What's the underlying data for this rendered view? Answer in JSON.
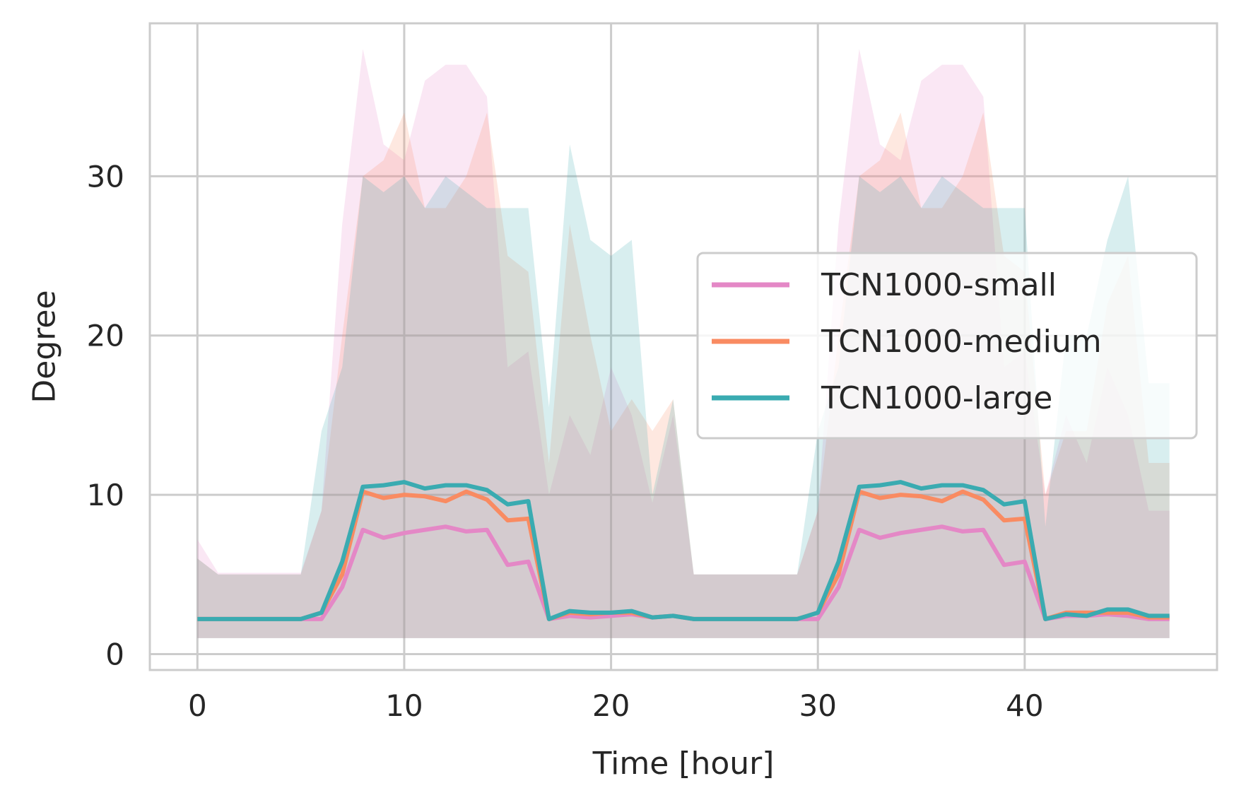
{
  "chart_data": {
    "type": "line",
    "title": "",
    "xlabel": "Time [hour]",
    "ylabel": "Degree",
    "xlim": [
      -2.3,
      49.3
    ],
    "ylim": [
      -1.0,
      39.6
    ],
    "xticks": [
      0,
      10,
      20,
      30,
      40
    ],
    "yticks": [
      0,
      10,
      20,
      30
    ],
    "grid": true,
    "legend_position": "center-right",
    "x": [
      0,
      1,
      2,
      3,
      4,
      5,
      6,
      7,
      8,
      9,
      10,
      11,
      12,
      13,
      14,
      15,
      16,
      17,
      18,
      19,
      20,
      21,
      22,
      23,
      24,
      25,
      26,
      27,
      28,
      29,
      30,
      31,
      32,
      33,
      34,
      35,
      36,
      37,
      38,
      39,
      40,
      41,
      42,
      43,
      44,
      45,
      46,
      47
    ],
    "series": [
      {
        "name": "TCN1000-small",
        "color": "#e488c6",
        "mean": [
          2.2,
          2.2,
          2.2,
          2.2,
          2.2,
          2.2,
          2.2,
          4.2,
          7.8,
          7.3,
          7.6,
          7.8,
          8.0,
          7.7,
          7.8,
          5.6,
          5.8,
          2.2,
          2.4,
          2.3,
          2.4,
          2.5,
          2.3,
          2.4,
          2.2,
          2.2,
          2.2,
          2.2,
          2.2,
          2.2,
          2.2,
          4.2,
          7.8,
          7.3,
          7.6,
          7.8,
          8.0,
          7.7,
          7.8,
          5.6,
          5.8,
          2.2,
          2.4,
          2.4,
          2.5,
          2.4,
          2.2,
          2.2
        ],
        "upper": [
          7.2,
          5.1,
          5.1,
          5.1,
          5.1,
          5.1,
          9.0,
          27.0,
          38.0,
          32.0,
          31.0,
          36.0,
          37.0,
          37.0,
          35.0,
          18.0,
          19.0,
          10.0,
          15.0,
          12.5,
          18.0,
          15.0,
          9.5,
          15.0,
          5.0,
          5.0,
          5.0,
          5.0,
          5.0,
          5.0,
          9.0,
          27.0,
          38.0,
          32.0,
          31.0,
          36.0,
          37.0,
          37.0,
          35.0,
          18.0,
          19.0,
          10.0,
          15.0,
          12.0,
          18.0,
          15.0,
          9.0,
          9.0
        ],
        "lower": [
          1,
          1,
          1,
          1,
          1,
          1,
          1,
          1,
          1,
          1,
          1,
          1,
          1,
          1,
          1,
          1,
          1,
          1,
          1,
          1,
          1,
          1,
          1,
          1,
          1,
          1,
          1,
          1,
          1,
          1,
          1,
          1,
          1,
          1,
          1,
          1,
          1,
          1,
          1,
          1,
          1,
          1,
          1,
          1,
          1,
          1,
          1,
          1
        ]
      },
      {
        "name": "TCN1000-medium",
        "color": "#f98b62",
        "mean": [
          2.2,
          2.2,
          2.2,
          2.2,
          2.2,
          2.2,
          2.6,
          5.0,
          10.2,
          9.8,
          10.0,
          9.9,
          9.6,
          10.2,
          9.7,
          8.4,
          8.5,
          2.2,
          2.6,
          2.5,
          2.6,
          2.6,
          2.3,
          2.4,
          2.2,
          2.2,
          2.2,
          2.2,
          2.2,
          2.2,
          2.6,
          5.0,
          10.2,
          9.8,
          10.0,
          9.9,
          9.6,
          10.2,
          9.7,
          8.4,
          8.5,
          2.2,
          2.6,
          2.6,
          2.6,
          2.6,
          2.3,
          2.3
        ],
        "upper": [
          6.0,
          5.0,
          5.0,
          5.0,
          5.0,
          5.0,
          9.0,
          20.0,
          30.0,
          31.0,
          34.0,
          28.0,
          28.0,
          30.0,
          34.0,
          25.0,
          24.0,
          12.0,
          27.0,
          20.0,
          14.0,
          16.0,
          14.0,
          16.0,
          5.0,
          5.0,
          5.0,
          5.0,
          5.0,
          5.0,
          9.0,
          20.0,
          30.0,
          31.0,
          34.0,
          28.0,
          28.0,
          30.0,
          34.0,
          25.0,
          24.0,
          10.0,
          14.0,
          14.0,
          22.0,
          25.0,
          12.0,
          12.0
        ],
        "lower": [
          1,
          1,
          1,
          1,
          1,
          1,
          1,
          1,
          1,
          1,
          1,
          1,
          1,
          1,
          1,
          1,
          1,
          1,
          1,
          1,
          1,
          1,
          1,
          1,
          1,
          1,
          1,
          1,
          1,
          1,
          1,
          1,
          1,
          1,
          1,
          1,
          1,
          1,
          1,
          1,
          1,
          1,
          1,
          1,
          1,
          1,
          1,
          1
        ]
      },
      {
        "name": "TCN1000-large",
        "color": "#3aabb1",
        "mean": [
          2.2,
          2.2,
          2.2,
          2.2,
          2.2,
          2.2,
          2.6,
          5.8,
          10.5,
          10.6,
          10.8,
          10.4,
          10.6,
          10.6,
          10.3,
          9.4,
          9.6,
          2.2,
          2.7,
          2.6,
          2.6,
          2.7,
          2.3,
          2.4,
          2.2,
          2.2,
          2.2,
          2.2,
          2.2,
          2.2,
          2.6,
          5.8,
          10.5,
          10.6,
          10.8,
          10.4,
          10.6,
          10.6,
          10.3,
          9.4,
          9.6,
          2.2,
          2.5,
          2.4,
          2.8,
          2.8,
          2.4,
          2.4
        ],
        "upper": [
          6.0,
          5.0,
          5.0,
          5.0,
          5.0,
          5.0,
          14.0,
          18.0,
          30.0,
          29.0,
          30.0,
          28.0,
          30.0,
          29.0,
          28.0,
          28.0,
          28.0,
          15.5,
          32.0,
          26.0,
          25.0,
          26.0,
          10.0,
          16.0,
          5.0,
          5.0,
          5.0,
          5.0,
          5.0,
          5.0,
          14.0,
          18.0,
          30.0,
          29.0,
          30.0,
          28.0,
          30.0,
          29.0,
          28.0,
          28.0,
          28.0,
          8.0,
          20.0,
          20.0,
          26.0,
          30.0,
          17.0,
          17.0
        ],
        "lower": [
          1,
          1,
          1,
          1,
          1,
          1,
          1,
          1,
          1,
          1,
          1,
          1,
          1,
          1,
          1,
          1,
          1,
          1,
          1,
          1,
          1,
          1,
          1,
          1,
          1,
          1,
          1,
          1,
          1,
          1,
          1,
          1,
          1,
          1,
          1,
          1,
          1,
          1,
          1,
          1,
          1,
          1,
          1,
          1,
          1,
          1,
          1,
          1
        ]
      }
    ]
  }
}
